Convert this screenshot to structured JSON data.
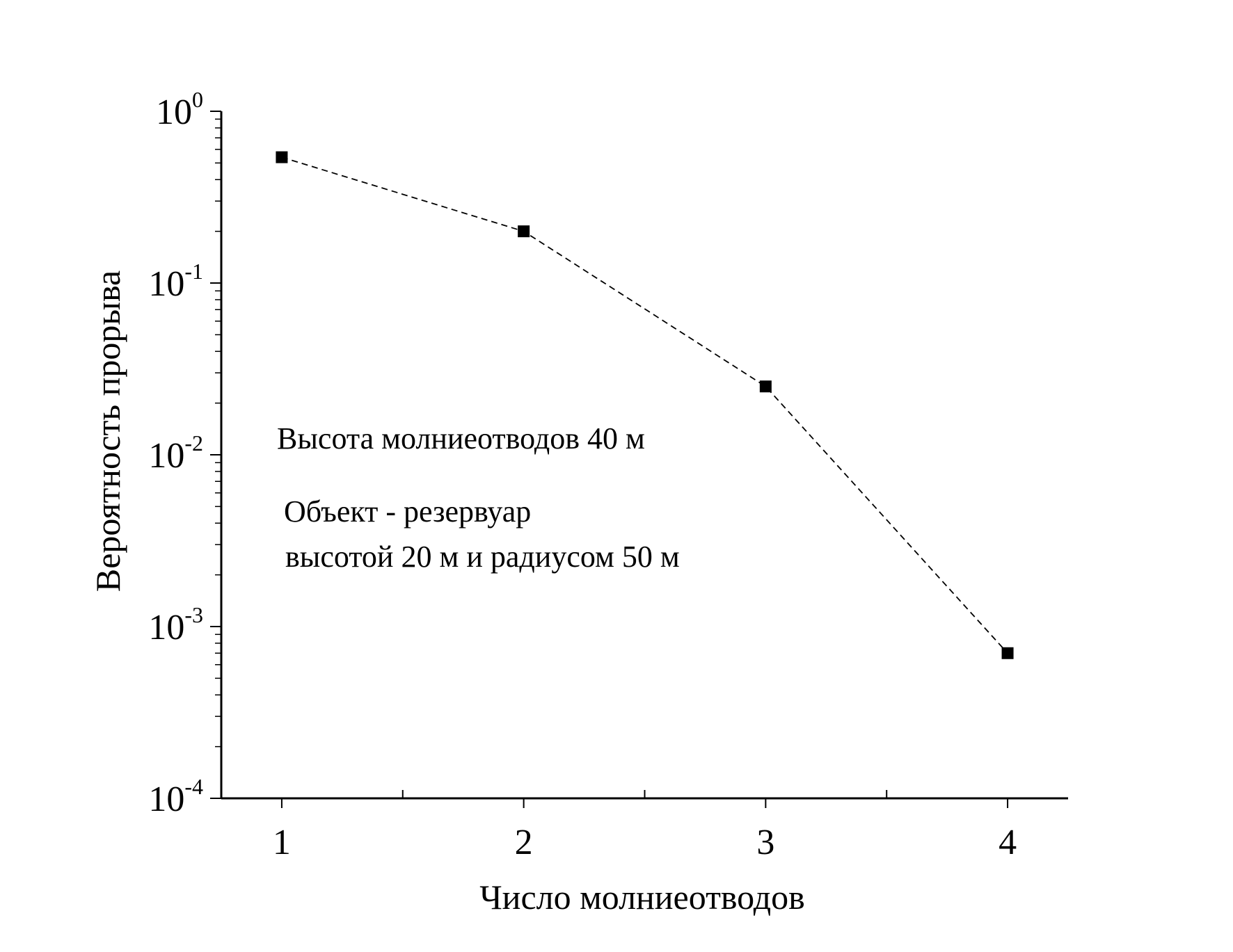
{
  "chart_data": {
    "type": "line",
    "xlabel": "Число молниеотводов",
    "ylabel": "Вероятность прорыва",
    "xlim": [
      0.75,
      4.25
    ],
    "ylim": [
      0.0001,
      1
    ],
    "yscale": "log",
    "x_ticks": [
      "1",
      "2",
      "3",
      "4"
    ],
    "y_ticks": [
      {
        "base": "10",
        "exp": "0",
        "value": 1
      },
      {
        "base": "10",
        "exp": "-1",
        "value": 0.1
      },
      {
        "base": "10",
        "exp": "-2",
        "value": 0.01
      },
      {
        "base": "10",
        "exp": "-3",
        "value": 0.001
      },
      {
        "base": "10",
        "exp": "-4",
        "value": 0.0001
      }
    ],
    "series": [
      {
        "x": [
          1,
          2,
          3,
          4
        ],
        "y": [
          0.54,
          0.2,
          0.025,
          0.0007
        ],
        "style": "dashed",
        "marker": "square",
        "color": "#000000"
      }
    ],
    "annotations": [
      "Высота молниеотводов 40 м",
      "Объект - резервуар",
      "высотой 20 м и радиусом 50 м"
    ],
    "grid": false,
    "legend": "none"
  }
}
